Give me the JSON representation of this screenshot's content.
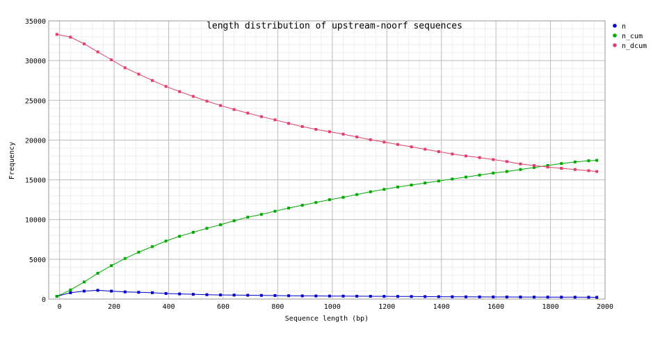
{
  "chart_data": {
    "type": "line",
    "title": "length distribution of upstream-noorf sequences",
    "xlabel": "Sequence length (bp)",
    "ylabel": "Frequency",
    "xlim": [
      -40,
      2000
    ],
    "ylim": [
      0,
      35000
    ],
    "xticks": [
      0,
      200,
      400,
      600,
      800,
      1000,
      1200,
      1400,
      1600,
      1800,
      2000
    ],
    "yticks": [
      0,
      5000,
      10000,
      15000,
      20000,
      25000,
      30000,
      35000
    ],
    "grid": true,
    "legend": "top-right",
    "x": [
      -10,
      40,
      90,
      140,
      190,
      240,
      290,
      340,
      390,
      440,
      490,
      540,
      590,
      640,
      690,
      740,
      790,
      840,
      890,
      940,
      990,
      1040,
      1090,
      1140,
      1190,
      1240,
      1290,
      1340,
      1390,
      1440,
      1490,
      1540,
      1590,
      1640,
      1690,
      1740,
      1790,
      1840,
      1890,
      1940,
      1970
    ],
    "series": [
      {
        "name": "n",
        "color": "#0000cc",
        "values": [
          350,
          800,
          1000,
          1100,
          1000,
          900,
          850,
          800,
          700,
          650,
          600,
          550,
          520,
          500,
          480,
          460,
          440,
          420,
          400,
          390,
          380,
          370,
          360,
          350,
          340,
          330,
          320,
          310,
          300,
          290,
          280,
          270,
          265,
          260,
          255,
          250,
          245,
          240,
          235,
          230,
          220
        ]
      },
      {
        "name": "n_cum",
        "color": "#00aa00",
        "values": [
          350,
          1150,
          2150,
          3250,
          4200,
          5100,
          5900,
          6600,
          7300,
          7900,
          8400,
          8900,
          9350,
          9850,
          10300,
          10650,
          11050,
          11450,
          11800,
          12150,
          12500,
          12800,
          13150,
          13500,
          13800,
          14100,
          14350,
          14600,
          14850,
          15100,
          15350,
          15600,
          15850,
          16050,
          16300,
          16550,
          16800,
          17050,
          17250,
          17400,
          17450
        ]
      },
      {
        "name": "n_dcum",
        "color": "#e0406a",
        "values": [
          33300,
          32950,
          32100,
          31100,
          30100,
          29100,
          28300,
          27500,
          26750,
          26100,
          25500,
          24900,
          24350,
          23850,
          23400,
          22950,
          22550,
          22100,
          21700,
          21350,
          21050,
          20750,
          20400,
          20050,
          19750,
          19450,
          19150,
          18850,
          18550,
          18250,
          18000,
          17800,
          17550,
          17300,
          17000,
          16800,
          16600,
          16450,
          16300,
          16150,
          16050
        ]
      }
    ]
  }
}
